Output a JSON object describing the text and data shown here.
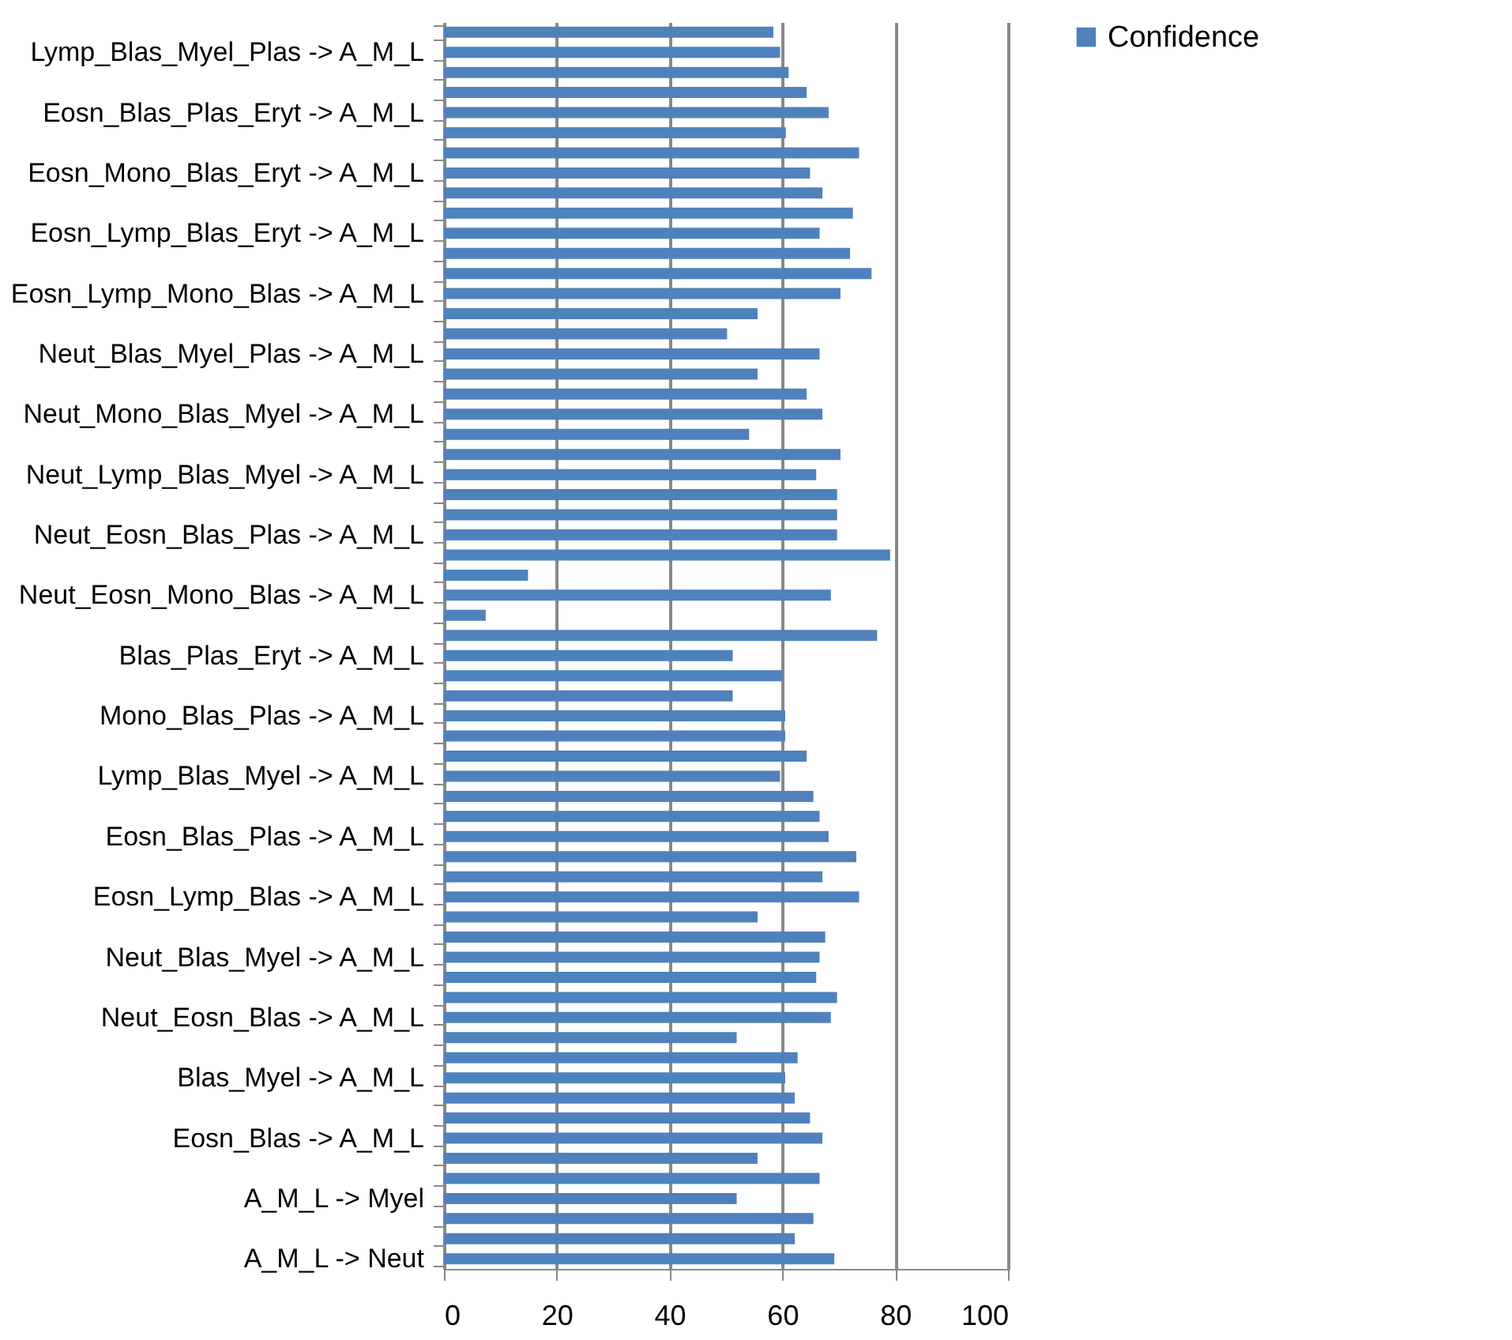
{
  "chart_data": {
    "type": "bar",
    "orientation": "horizontal",
    "categories": [
      null,
      "Lymp_Blas_Myel_Plas -> A_M_L",
      null,
      null,
      "Eosn_Blas_Plas_Eryt -> A_M_L",
      null,
      null,
      "Eosn_Mono_Blas_Eryt -> A_M_L",
      null,
      null,
      "Eosn_Lymp_Blas_Eryt -> A_M_L",
      null,
      null,
      "Eosn_Lymp_Mono_Blas -> A_M_L",
      null,
      null,
      "Neut_Blas_Myel_Plas -> A_M_L",
      null,
      null,
      "Neut_Mono_Blas_Myel -> A_M_L",
      null,
      null,
      "Neut_Lymp_Blas_Myel -> A_M_L",
      null,
      null,
      "Neut_Eosn_Blas_Plas -> A_M_L",
      null,
      null,
      "Neut_Eosn_Mono_Blas -> A_M_L",
      null,
      null,
      "Blas_Plas_Eryt -> A_M_L",
      null,
      null,
      "Mono_Blas_Plas -> A_M_L",
      null,
      null,
      "Lymp_Blas_Myel -> A_M_L",
      null,
      null,
      "Eosn_Blas_Plas -> A_M_L",
      null,
      null,
      "Eosn_Lymp_Blas -> A_M_L",
      null,
      null,
      "Neut_Blas_Myel -> A_M_L",
      null,
      null,
      "Neut_Eosn_Blas -> A_M_L",
      null,
      null,
      "Blas_Myel -> A_M_L",
      null,
      null,
      "Eosn_Blas -> A_M_L",
      null,
      null,
      "A_M_L -> Myel",
      null,
      null,
      "A_M_L -> Neut"
    ],
    "series": [
      {
        "name": "Confidence",
        "color": "#4f81bd",
        "values": [
          58.4,
          59.6,
          61.1,
          64.3,
          68.2,
          60.6,
          73.6,
          64.9,
          67.1,
          72.5,
          66.6,
          72.0,
          75.8,
          70.3,
          55.6,
          50.2,
          66.6,
          55.6,
          64.3,
          67.1,
          54.1,
          70.3,
          66.0,
          69.7,
          69.7,
          69.7,
          79.1,
          14.9,
          68.6,
          7.4,
          76.8,
          51.2,
          60.0,
          51.2,
          60.5,
          60.5,
          64.3,
          59.6,
          65.5,
          66.6,
          68.2,
          73.1,
          67.1,
          73.6,
          55.6,
          67.6,
          66.6,
          66.0,
          69.7,
          68.6,
          51.9,
          62.7,
          60.5,
          62.2,
          64.9,
          67.1,
          55.6,
          66.6,
          51.9,
          65.5,
          62.2,
          69.2
        ]
      }
    ],
    "xlim": [
      0,
      100
    ],
    "xticks": [
      0,
      20,
      40,
      60,
      80,
      100
    ],
    "grid": "x",
    "legend": "right"
  }
}
